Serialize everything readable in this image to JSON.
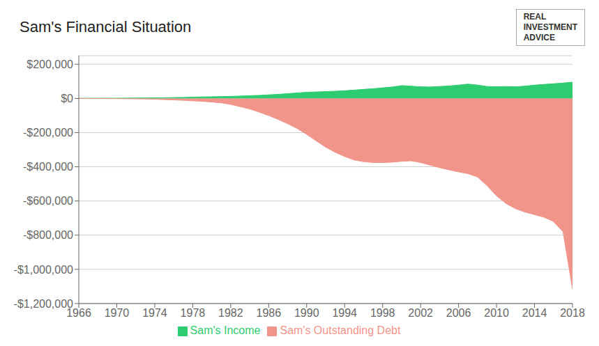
{
  "chart_data": {
    "type": "area",
    "title": "Sam's Financial Situation",
    "annotations": [
      "REAL",
      "INVESTMENT",
      "ADVICE"
    ],
    "x": [
      1966,
      1967,
      1968,
      1969,
      1970,
      1971,
      1972,
      1973,
      1974,
      1975,
      1976,
      1977,
      1978,
      1979,
      1980,
      1981,
      1982,
      1983,
      1984,
      1985,
      1986,
      1987,
      1988,
      1989,
      1990,
      1991,
      1992,
      1993,
      1994,
      1995,
      1996,
      1997,
      1998,
      1999,
      2000,
      2001,
      2002,
      2003,
      2004,
      2005,
      2006,
      2007,
      2008,
      2009,
      2010,
      2011,
      2012,
      2013,
      2014,
      2015,
      2016,
      2017,
      2018
    ],
    "series": [
      {
        "name": "Sam's Income",
        "color": "#2ecc71",
        "values": [
          500,
          700,
          900,
          1200,
          1500,
          2000,
          2500,
          3000,
          3500,
          4000,
          5000,
          6000,
          7500,
          9000,
          10000,
          11000,
          12000,
          14000,
          16000,
          18000,
          21000,
          24000,
          28000,
          32000,
          36000,
          38000,
          40000,
          42000,
          45000,
          49000,
          53000,
          57000,
          62000,
          67000,
          75000,
          72000,
          68000,
          67000,
          70000,
          73000,
          78000,
          84000,
          78000,
          70000,
          68000,
          70000,
          68000,
          72000,
          78000,
          82000,
          86000,
          90000,
          95000
        ]
      },
      {
        "name": "Sam's Outstanding Debt",
        "color": "#f1948a",
        "values": [
          0,
          -200,
          -500,
          -800,
          -1200,
          -1800,
          -2500,
          -3500,
          -5000,
          -7000,
          -9000,
          -11000,
          -14000,
          -17000,
          -21000,
          -26000,
          -35000,
          -48000,
          -62000,
          -80000,
          -100000,
          -123000,
          -148000,
          -176000,
          -210000,
          -248000,
          -285000,
          -315000,
          -340000,
          -360000,
          -370000,
          -375000,
          -375000,
          -373000,
          -368000,
          -365000,
          -375000,
          -390000,
          -405000,
          -418000,
          -430000,
          -440000,
          -460000,
          -510000,
          -570000,
          -615000,
          -645000,
          -665000,
          -680000,
          -695000,
          -720000,
          -780000,
          -1115000
        ]
      }
    ],
    "xlim": [
      1966,
      2018
    ],
    "xticks": [
      1966,
      1970,
      1974,
      1978,
      1982,
      1986,
      1990,
      1994,
      1998,
      2002,
      2006,
      2010,
      2014,
      2018
    ],
    "ylim": [
      -1200000,
      250000
    ],
    "yticks": [
      {
        "value": -1200000,
        "label": "-$1,200,000"
      },
      {
        "value": -1000000,
        "label": "-$1,000,000"
      },
      {
        "value": -800000,
        "label": "-$800,000"
      },
      {
        "value": -600000,
        "label": "-$600,000"
      },
      {
        "value": -400000,
        "label": "-$400,000"
      },
      {
        "value": -200000,
        "label": "-$200,000"
      },
      {
        "value": 0,
        "label": "$0"
      },
      {
        "value": 200000,
        "label": "$200,000"
      }
    ],
    "grid": true,
    "legend": "bottom"
  }
}
